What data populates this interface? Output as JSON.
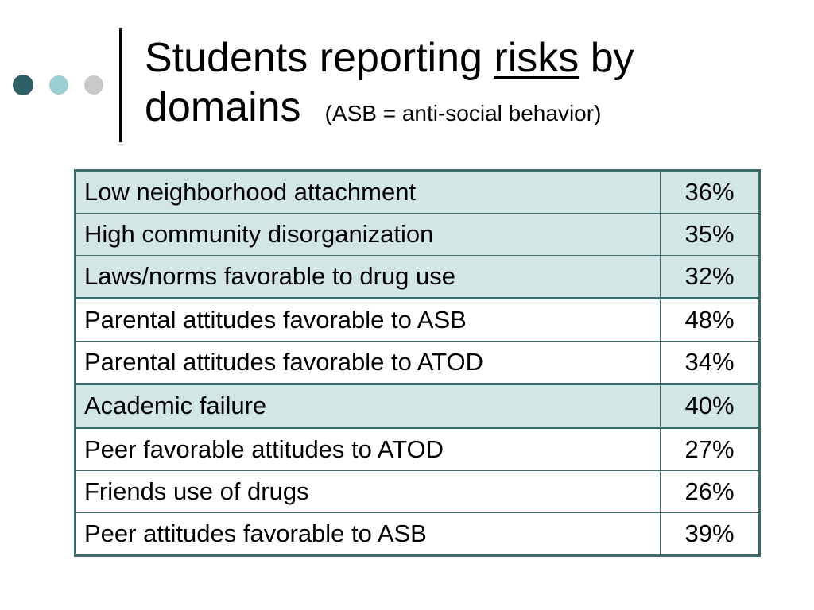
{
  "colors": {
    "dot_1": "#2e5f66",
    "dot_2": "#9ccfd3",
    "dot_3": "#c9c9c9",
    "shade": "#d3e6e6",
    "border": "#3d6b6b"
  },
  "title": {
    "part1": "Students reporting ",
    "underlined": "risks",
    "part2": " by",
    "line2": "domains",
    "subtitle": "(ASB = anti-social behavior)"
  },
  "table": {
    "rows": [
      {
        "label": "Low neighborhood attachment",
        "value": "36%",
        "shaded": true,
        "group_end": false
      },
      {
        "label": "High community disorganization",
        "value": "35%",
        "shaded": true,
        "group_end": false
      },
      {
        "label": "Laws/norms favorable to drug use",
        "value": "32%",
        "shaded": true,
        "group_end": true
      },
      {
        "label": "Parental attitudes favorable to ASB",
        "value": "48%",
        "shaded": false,
        "group_end": false
      },
      {
        "label": "Parental attitudes favorable to ATOD",
        "value": "34%",
        "shaded": false,
        "group_end": true
      },
      {
        "label": "Academic failure",
        "value": "40%",
        "shaded": true,
        "group_end": true
      },
      {
        "label": "Peer favorable attitudes to ATOD",
        "value": "27%",
        "shaded": false,
        "group_end": false
      },
      {
        "label": "Friends use of drugs",
        "value": "26%",
        "shaded": false,
        "group_end": false
      },
      {
        "label": "Peer attitudes favorable to ASB",
        "value": "39%",
        "shaded": false,
        "group_end": false
      }
    ]
  }
}
